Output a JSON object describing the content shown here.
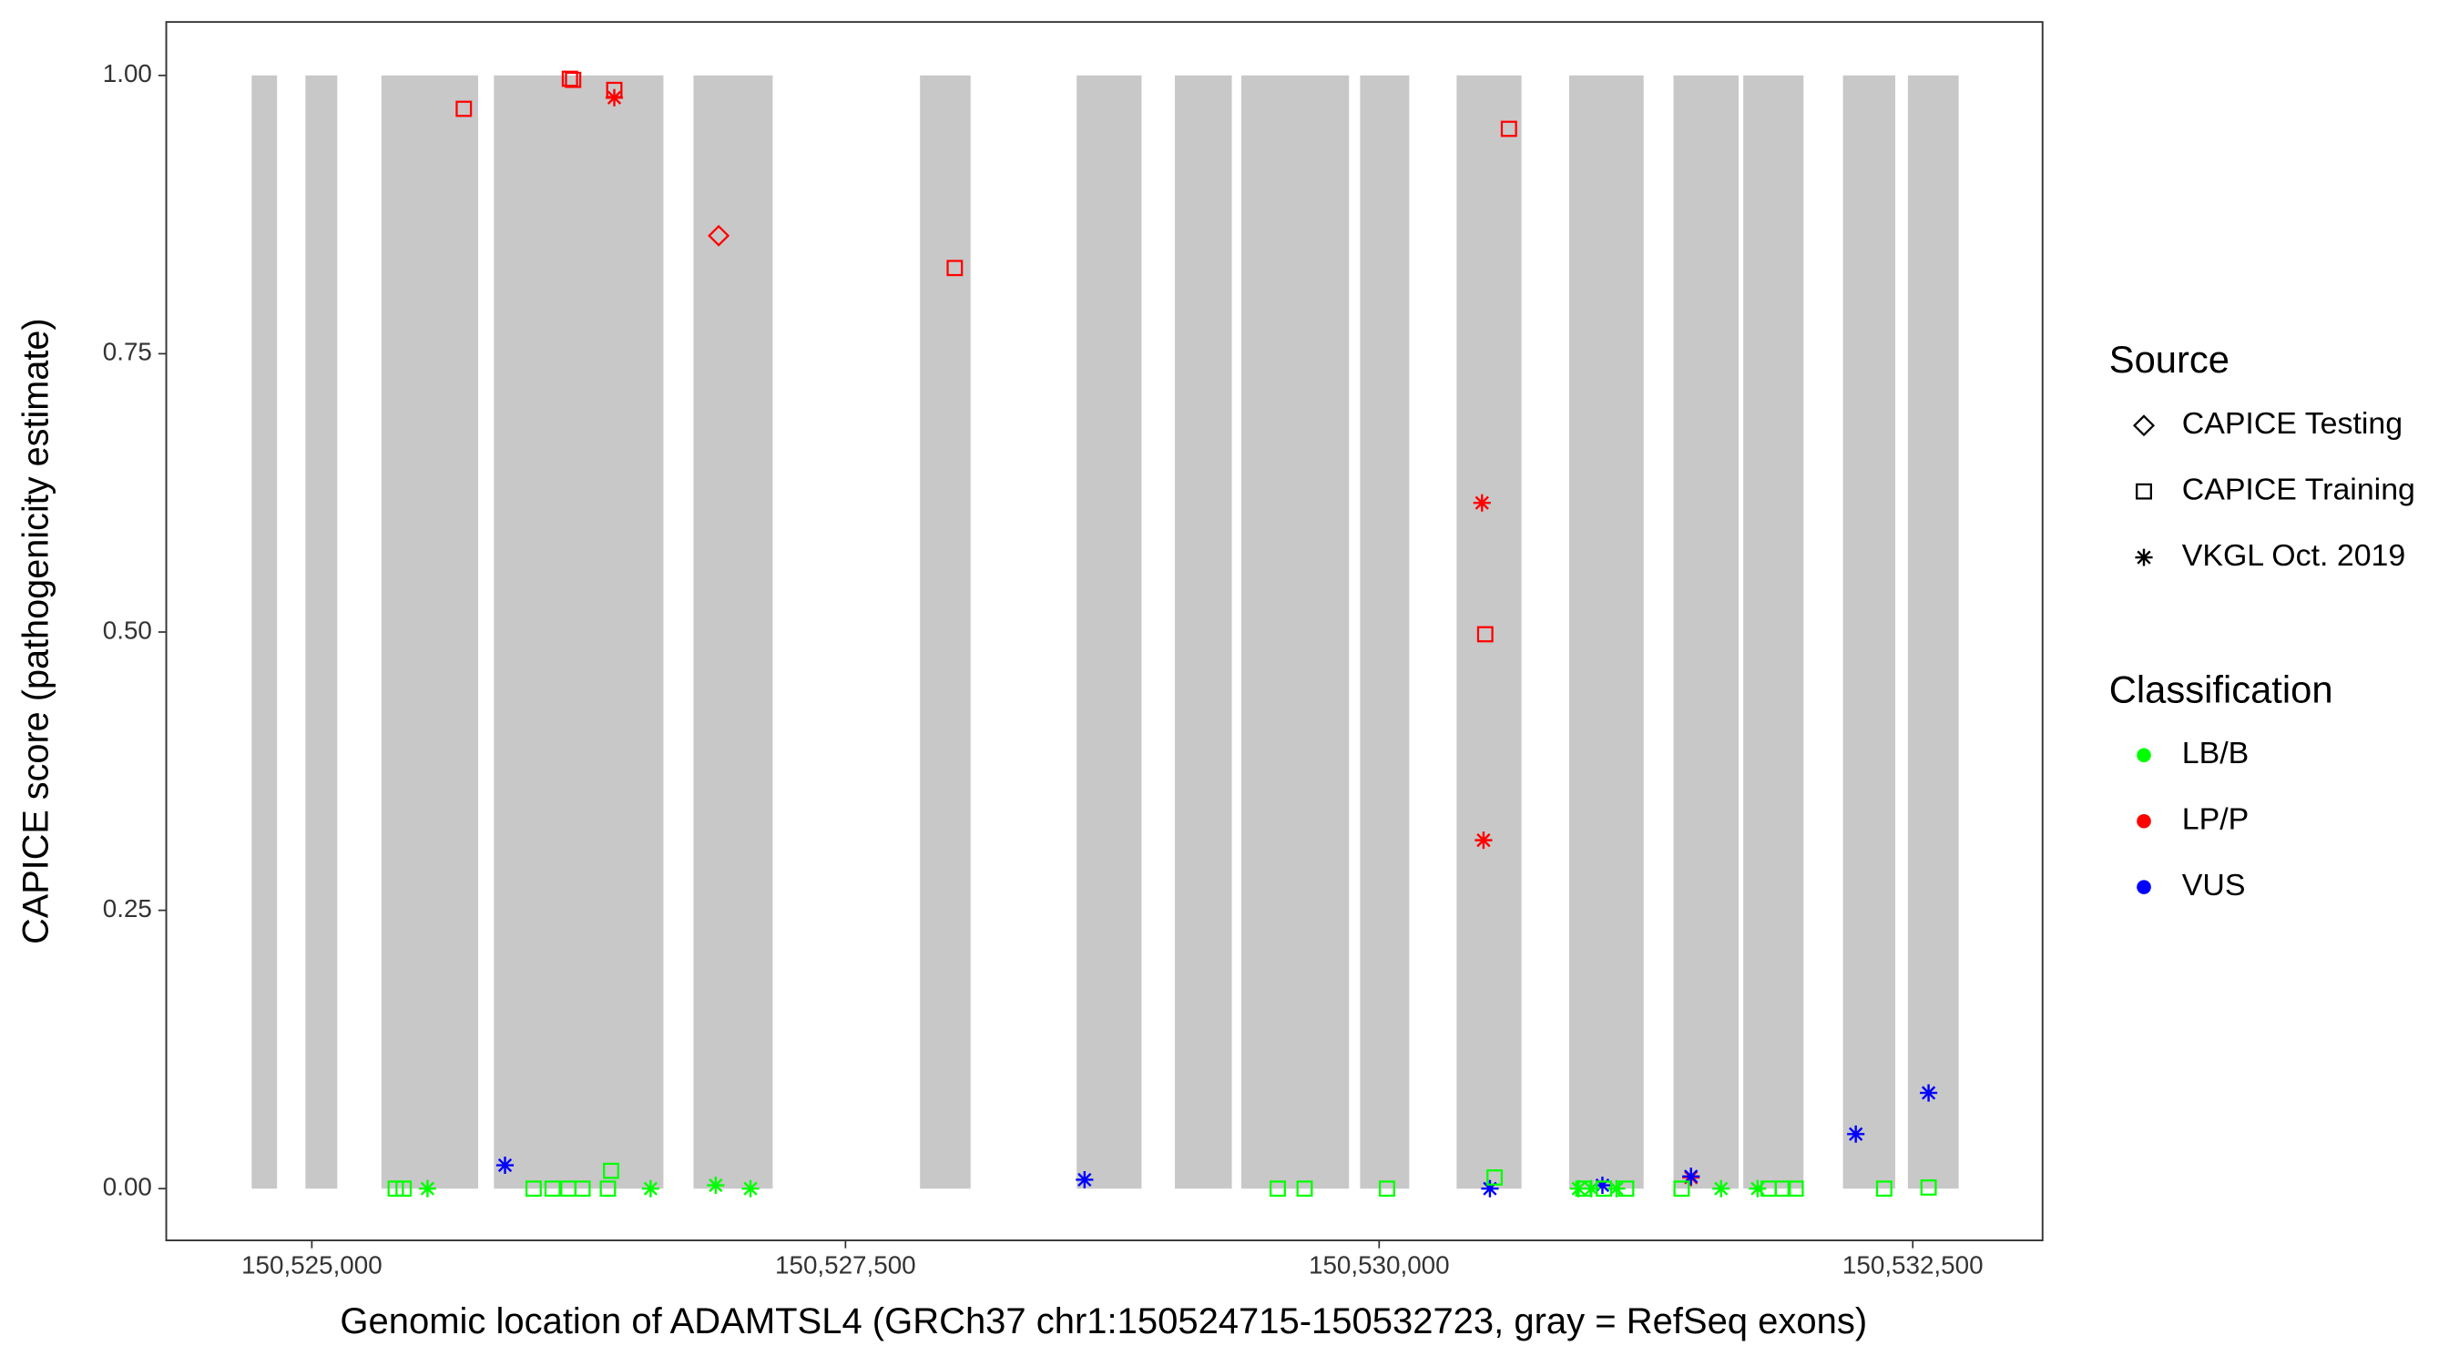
{
  "chart_data": {
    "type": "scatter",
    "x_label": "Genomic location of ADAMTSL4 (GRCh37 chr1:150524715-150532723, gray = RefSeq exons)",
    "y_label": "CAPICE score (pathogenicity estimate)",
    "xlim": [
      150524318,
      150533108
    ],
    "ylim": [
      -0.0465,
      1.048
    ],
    "xticks": [
      {
        "value": 150525000,
        "label": "150,525,000"
      },
      {
        "value": 150527500,
        "label": "150,527,500"
      },
      {
        "value": 150530000,
        "label": "150,530,000"
      },
      {
        "value": 150532500,
        "label": "150,532,500"
      }
    ],
    "yticks": [
      {
        "value": 0,
        "label": "0.00"
      },
      {
        "value": 0.25,
        "label": "0.25"
      },
      {
        "value": 0.5,
        "label": "0.50"
      },
      {
        "value": 0.75,
        "label": "0.75"
      },
      {
        "value": 1,
        "label": "1.00"
      }
    ],
    "exon_range": [
      0,
      1
    ],
    "exon_color": "#c8c8c8",
    "exons": [
      [
        150524718,
        150524837
      ],
      [
        150524970,
        150525119
      ],
      [
        150525326,
        150525779
      ],
      [
        150525853,
        150526647
      ],
      [
        150526788,
        150527159
      ],
      [
        150527849,
        150528086
      ],
      [
        150528583,
        150528887
      ],
      [
        150529043,
        150529310
      ],
      [
        150529354,
        150529859
      ],
      [
        150529911,
        150530141
      ],
      [
        150530363,
        150530667
      ],
      [
        150530890,
        150531239
      ],
      [
        150531379,
        150531684
      ],
      [
        150531706,
        150531988
      ],
      [
        150532173,
        150532418
      ],
      [
        150532477,
        150532715
      ]
    ],
    "source_title": "Source",
    "sources": [
      {
        "name": "CAPICE Testing",
        "shape": "diamond"
      },
      {
        "name": "CAPICE Training",
        "shape": "square"
      },
      {
        "name": "VKGL Oct. 2019",
        "shape": "asterisk"
      }
    ],
    "classification_title": "Classification",
    "classifications": [
      {
        "name": "LB/B",
        "color": "#00ff00"
      },
      {
        "name": "LP/P",
        "color": "#ff0000"
      },
      {
        "name": "VUS",
        "color": "#0000ff"
      }
    ],
    "series": [
      {
        "source": "CAPICE Training",
        "classification": "LP/P",
        "x": [
          150525712,
          150526209,
          150526224,
          150526417,
          150528012,
          150530608,
          150530497
        ],
        "values": [
          0.97,
          0.997,
          0.996,
          0.987,
          0.827,
          0.952,
          0.498
        ]
      },
      {
        "source": "VKGL Oct. 2019",
        "classification": "LP/P",
        "x": [
          150526417,
          150530482,
          150530489,
          150531461
        ],
        "values": [
          0.98,
          0.616,
          0.313,
          0.01
        ]
      },
      {
        "source": "CAPICE Testing",
        "classification": "LP/P",
        "x": [
          150526906
        ],
        "values": [
          0.856
        ]
      },
      {
        "source": "VKGL Oct. 2019",
        "classification": "VUS",
        "x": [
          150525905,
          150528620,
          150530519,
          150531046,
          150531461,
          150532233,
          150532574
        ],
        "values": [
          0.021,
          0.008,
          0.0,
          0.003,
          0.011,
          0.049,
          0.086
        ]
      },
      {
        "source": "VKGL Oct. 2019",
        "classification": "LB/B",
        "x": [
          150525542,
          150526587,
          150526892,
          150527055,
          150530934,
          150530994,
          150531112,
          150531602,
          150531773
        ],
        "values": [
          0,
          0,
          0.003,
          0,
          0,
          0,
          0,
          0,
          0
        ]
      },
      {
        "source": "CAPICE Training",
        "classification": "LB/B",
        "x": [
          150525393,
          150525430,
          150526039,
          150526128,
          150526202,
          150526268,
          150526387,
          150526402,
          150529525,
          150529651,
          150530037,
          150530541,
          150530957,
          150531053,
          150531157,
          150531417,
          150531825,
          150531891,
          150531951,
          150532366,
          150532574
        ],
        "values": [
          0,
          0,
          0,
          0,
          0,
          0,
          0,
          0.016,
          0,
          0,
          0,
          0.01,
          0,
          0,
          0,
          0,
          0,
          0,
          0,
          0,
          0.001
        ]
      }
    ]
  }
}
